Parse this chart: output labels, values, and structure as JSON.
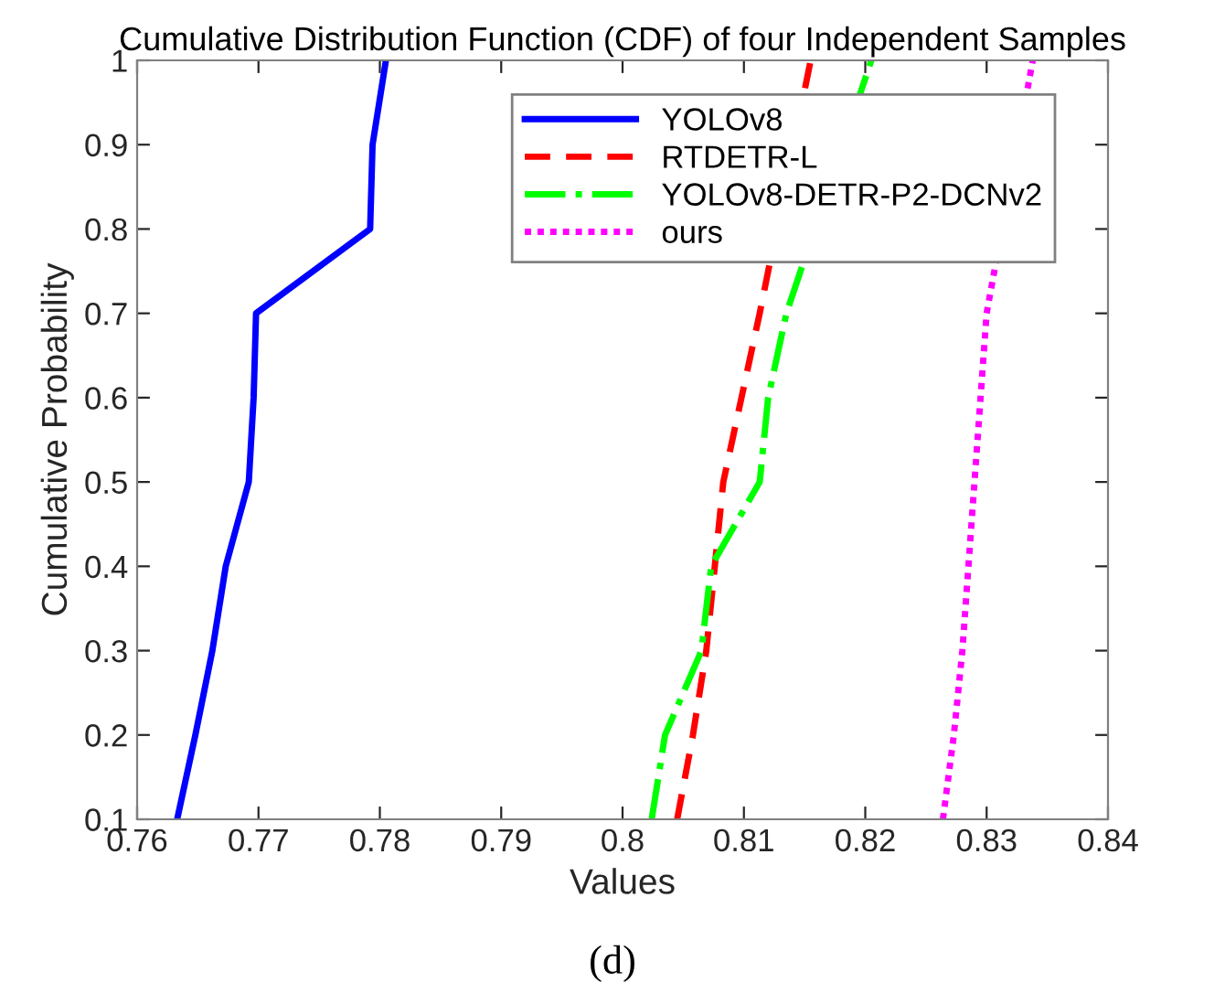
{
  "chart_data": {
    "type": "line",
    "title": "Cumulative Distribution Function (CDF) of four Independent Samples",
    "xlabel": "Values",
    "ylabel": "Cumulative Probability",
    "annotations": [
      "(d)"
    ],
    "xlim": [
      0.76,
      0.84
    ],
    "xticks": [
      0.76,
      0.77,
      0.78,
      0.79,
      0.8,
      0.81,
      0.82,
      0.83,
      0.84
    ],
    "ylim": [
      0.1,
      1
    ],
    "yticks": [
      0.1,
      0.2,
      0.3,
      0.4,
      0.5,
      0.6,
      0.7,
      0.8,
      0.9,
      1
    ],
    "grid": false,
    "legend": "top right",
    "marker": "none",
    "series": [
      {
        "name": "YOLOv8",
        "color": "#0000ff",
        "line_style": "solid",
        "x": [
          0.7633,
          0.7648,
          0.7662,
          0.7673,
          0.7692,
          0.7696,
          0.7698,
          0.7792,
          0.7794,
          0.7805
        ],
        "values": [
          0.1,
          0.2,
          0.3,
          0.4,
          0.5,
          0.6,
          0.7,
          0.8,
          0.9,
          1
        ]
      },
      {
        "name": "RTDETR-L",
        "color": "#ff0000",
        "line_style": "dashed",
        "x": [
          0.8045,
          0.8058,
          0.8069,
          0.8076,
          0.8083,
          0.8098,
          0.8113,
          0.8155
        ],
        "values": [
          0.1,
          0.2,
          0.3,
          0.4,
          0.5,
          0.6,
          0.7,
          1
        ]
      },
      {
        "name": "YOLOv8-DETR-P2-DCNv2",
        "color": "#00ff00",
        "line_style": "dashdot",
        "x": [
          0.8024,
          0.8035,
          0.8065,
          0.8073,
          0.8113,
          0.812,
          0.8135,
          0.8205
        ],
        "values": [
          0.1,
          0.2,
          0.3,
          0.4,
          0.5,
          0.6,
          0.7,
          1
        ]
      },
      {
        "name": "ours",
        "color": "#ff00ff",
        "line_style": "dotted",
        "x": [
          0.8264,
          0.8273,
          0.828,
          0.8285,
          0.829,
          0.8295,
          0.83,
          0.8338
        ],
        "values": [
          0.1,
          0.2,
          0.3,
          0.4,
          0.5,
          0.6,
          0.7,
          1
        ]
      }
    ]
  }
}
